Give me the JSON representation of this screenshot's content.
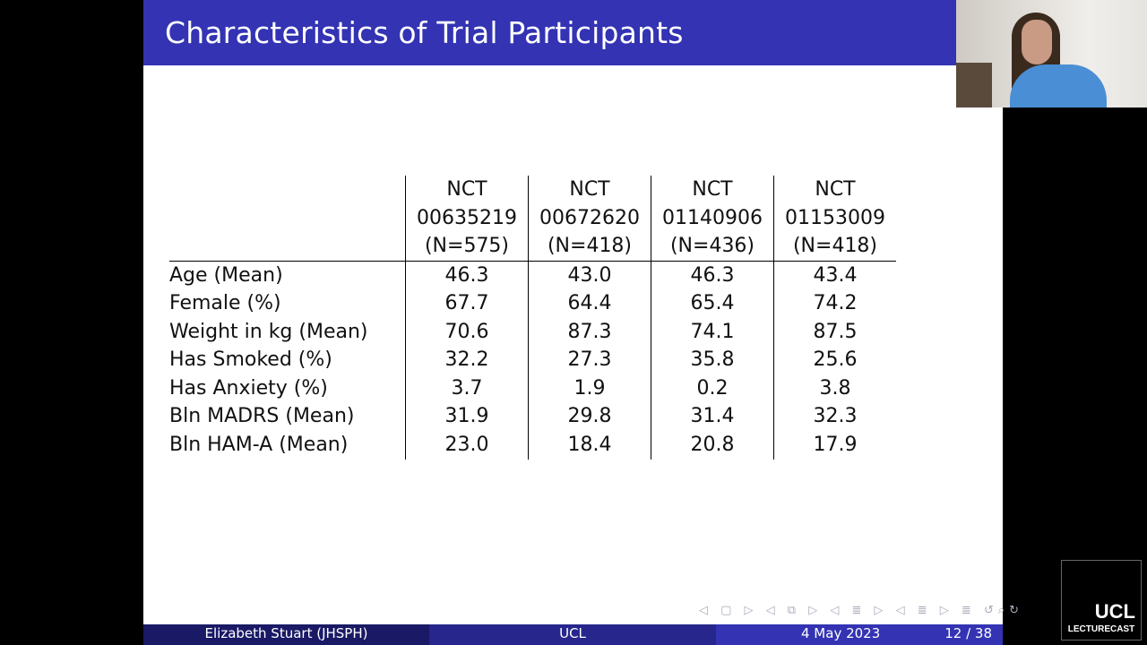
{
  "slide": {
    "title": "Characteristics of Trial Participants"
  },
  "table": {
    "columns": [
      {
        "line1": "NCT",
        "line2": "00635219",
        "line3": "(N=575)"
      },
      {
        "line1": "NCT",
        "line2": "00672620",
        "line3": "(N=418)"
      },
      {
        "line1": "NCT",
        "line2": "01140906",
        "line3": "(N=436)"
      },
      {
        "line1": "NCT",
        "line2": "01153009",
        "line3": "(N=418)"
      }
    ],
    "rows": [
      {
        "label": "Age (Mean)",
        "values": [
          "46.3",
          "43.0",
          "46.3",
          "43.4"
        ]
      },
      {
        "label": "Female (%)",
        "values": [
          "67.7",
          "64.4",
          "65.4",
          "74.2"
        ]
      },
      {
        "label": "Weight in kg (Mean)",
        "values": [
          "70.6",
          "87.3",
          "74.1",
          "87.5"
        ]
      },
      {
        "label": "Has Smoked (%)",
        "values": [
          "32.2",
          "27.3",
          "35.8",
          "25.6"
        ]
      },
      {
        "label": "Has Anxiety (%)",
        "values": [
          "3.7",
          "1.9",
          "0.2",
          "3.8"
        ]
      },
      {
        "label": "Bln MADRS (Mean)",
        "values": [
          "31.9",
          "29.8",
          "31.4",
          "32.3"
        ]
      },
      {
        "label": "Bln HAM-A (Mean)",
        "values": [
          "23.0",
          "18.4",
          "20.8",
          "17.9"
        ]
      }
    ]
  },
  "footer": {
    "author": "Elizabeth Stuart  (JHSPH)",
    "institution": "UCL",
    "date": "4 May 2023",
    "page": "12 / 38"
  },
  "nav_symbols": "◁ ▢ ▷  ◁ ⧉ ▷  ◁ ≣ ▷  ◁ ≣ ▷  ≣  ↺⌕↻",
  "logo": {
    "ucl": "UCL",
    "lecturecast": "LECTURECAST"
  },
  "colors": {
    "title_bar": "#3333b3",
    "footer_left": "#191966",
    "footer_mid": "#26268c",
    "footer_right": "#3333b3"
  }
}
